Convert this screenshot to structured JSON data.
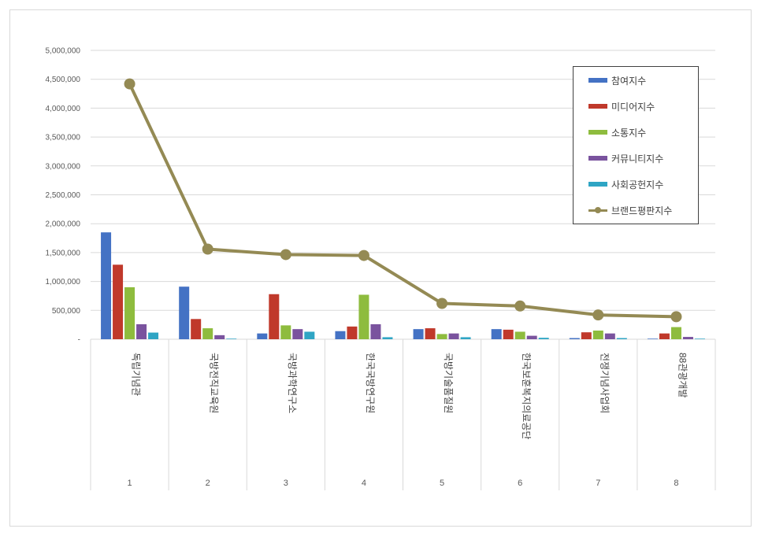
{
  "chart_data": {
    "type": "bar",
    "ylim": [
      0,
      5000000
    ],
    "yticks": [
      "-",
      "500,000",
      "1,000,000",
      "1,500,000",
      "2,000,000",
      "2,500,000",
      "3,000,000",
      "3,500,000",
      "4,000,000",
      "4,500,000",
      "5,000,000"
    ],
    "grid": true,
    "legend_position": "top-right",
    "ranks": [
      "1",
      "2",
      "3",
      "4",
      "5",
      "6",
      "7",
      "8"
    ],
    "categories": [
      "독립기념관",
      "국방전직교육원",
      "국방과학연구소",
      "한국국방연구원",
      "국방기술품질원",
      "한국보훈복지의료공단",
      "전쟁기념사업회",
      "88관광개발"
    ],
    "series": [
      {
        "name": "참여지수",
        "type": "bar",
        "color": "#4472c4",
        "values": [
          1850000,
          910000,
          100000,
          140000,
          175000,
          175000,
          20000,
          10000
        ]
      },
      {
        "name": "미디어지수",
        "type": "bar",
        "color": "#c0392b",
        "values": [
          1290000,
          350000,
          780000,
          220000,
          190000,
          165000,
          120000,
          100000
        ]
      },
      {
        "name": "소통지수",
        "type": "bar",
        "color": "#8ebc3e",
        "values": [
          900000,
          190000,
          240000,
          770000,
          90000,
          130000,
          150000,
          210000
        ]
      },
      {
        "name": "커뮤니티지수",
        "type": "bar",
        "color": "#7a539e",
        "values": [
          260000,
          70000,
          175000,
          260000,
          100000,
          60000,
          100000,
          40000
        ]
      },
      {
        "name": "사회공헌지수",
        "type": "bar",
        "color": "#2fa5c4",
        "values": [
          115000,
          10000,
          130000,
          35000,
          35000,
          25000,
          20000,
          10000
        ]
      },
      {
        "name": "브랜드평판지수",
        "type": "line",
        "color": "#948a54",
        "values": [
          4420000,
          1560000,
          1465000,
          1450000,
          620000,
          575000,
          420000,
          390000
        ]
      }
    ]
  }
}
